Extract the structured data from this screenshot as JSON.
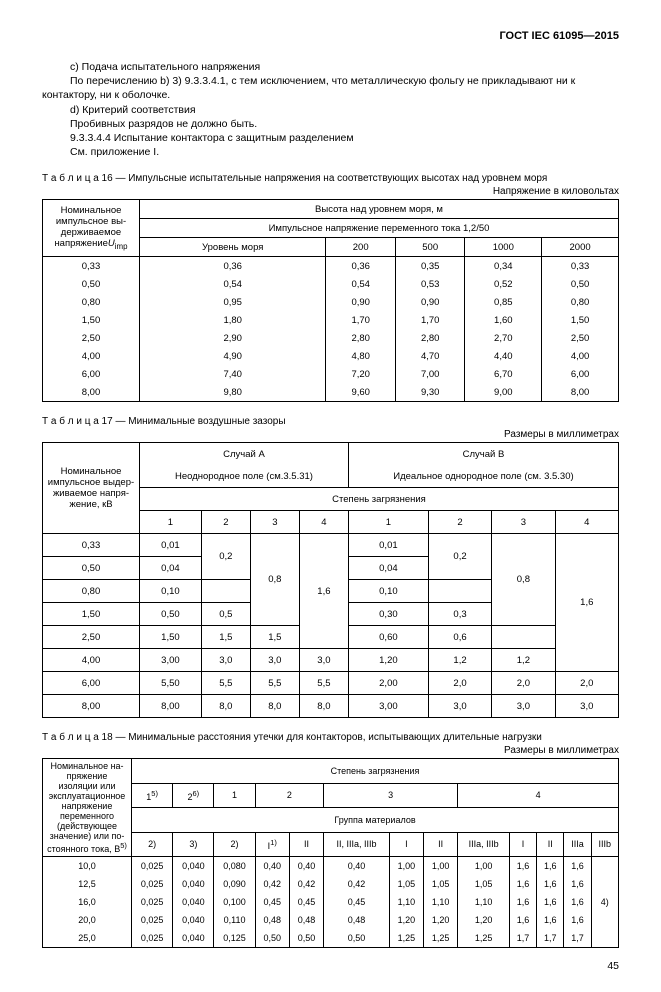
{
  "header": {
    "standard": "ГОСТ IEC 61095—2015"
  },
  "para": {
    "c": "c) Подача испытательного напряжения",
    "c2": "По перечислению b) 3) 9.3.3.4.1, с тем исключением, что металлическую фольгу не прикладывают ни к контактору, ни к оболочке.",
    "d": "d) Критерий соответствия",
    "d2": "Пробивных разрядов не должно быть.",
    "d3": "9.3.3.4.4 Испытание контактора с защитным разделением",
    "d4": "См. приложение I."
  },
  "t16": {
    "caption_label": "Т а б л и ц а  16",
    "caption_text": " — Импульсные испытательные напряжения на соответствующих высотах над уровнем моря",
    "unit": "Напряжение в киловольтах",
    "head_left": "Номинальное импульсное вы­держиваемое напряжение",
    "head_left_sym": "U",
    "head_left_sub": "imp",
    "head_top": "Высота над уровнем моря, м",
    "head_sub": "Импульсное напряжение переменного тока 1,2/50",
    "cols": [
      "Уровень моря",
      "200",
      "500",
      "1000",
      "2000"
    ],
    "rows": [
      {
        "u": "0,33",
        "v": [
          "0,36",
          "0,36",
          "0,35",
          "0,34",
          "0,33"
        ]
      },
      {
        "u": "0,50",
        "v": [
          "0,54",
          "0,54",
          "0,53",
          "0,52",
          "0,50"
        ]
      },
      {
        "u": "0,80",
        "v": [
          "0,95",
          "0,90",
          "0,90",
          "0,85",
          "0,80"
        ]
      },
      {
        "u": "1,50",
        "v": [
          "1,80",
          "1,70",
          "1,70",
          "1,60",
          "1,50"
        ]
      },
      {
        "u": "2,50",
        "v": [
          "2,90",
          "2,80",
          "2,80",
          "2,70",
          "2,50"
        ]
      },
      {
        "u": "4,00",
        "v": [
          "4,90",
          "4,80",
          "4,70",
          "4,40",
          "4,00"
        ]
      },
      {
        "u": "6,00",
        "v": [
          "7,40",
          "7,20",
          "7,00",
          "6,70",
          "6,00"
        ]
      },
      {
        "u": "8,00",
        "v": [
          "9,80",
          "9,60",
          "9,30",
          "9,00",
          "8,00"
        ]
      }
    ]
  },
  "t17": {
    "caption_label": "Т а б л и ц а  17",
    "caption_text": " — Минимальные воздушные зазоры",
    "unit": "Размеры в миллиметрах",
    "head_left": "Номинальное импульсное выдер­живаемое напря­жение, кВ",
    "caseA": "Случай А",
    "caseA_sub": "Неоднородное поле (см.3.5.31)",
    "caseB": "Случай В",
    "caseB_sub": "Идеальное однородное поле (см. 3.5.30)",
    "pollution": "Степень загрязнения",
    "cols": [
      "1",
      "2",
      "3",
      "4",
      "1",
      "2",
      "3",
      "4"
    ],
    "rows": [
      {
        "u": "0,33",
        "v": [
          "0,01",
          "0,2",
          "0,8",
          "1,6",
          "0,01",
          "0,2",
          "0,8",
          "1,6"
        ],
        "rs": [
          1,
          2,
          4,
          5,
          1,
          2,
          4,
          6
        ]
      },
      {
        "u": "0,50",
        "v": [
          "0,04",
          "",
          "",
          "",
          "0,04",
          "",
          "",
          ""
        ]
      },
      {
        "u": "0,80",
        "v": [
          "0,10",
          "",
          "",
          "",
          "0,10",
          "",
          "",
          ""
        ]
      },
      {
        "u": "1,50",
        "v": [
          "0,50",
          "0,5",
          "",
          "",
          "0,30",
          "0,3",
          "",
          ""
        ]
      },
      {
        "u": "2,50",
        "v": [
          "1,50",
          "1,5",
          "1,5",
          "",
          "0,60",
          "0,6",
          "",
          ""
        ]
      },
      {
        "u": "4,00",
        "v": [
          "3,00",
          "3,0",
          "3,0",
          "3,0",
          "1,20",
          "1,2",
          "1,2",
          ""
        ]
      },
      {
        "u": "6,00",
        "v": [
          "5,50",
          "5,5",
          "5,5",
          "5,5",
          "2,00",
          "2,0",
          "2,0",
          "2,0"
        ]
      },
      {
        "u": "8,00",
        "v": [
          "8,00",
          "8,0",
          "8,0",
          "8,0",
          "3,00",
          "3,0",
          "3,0",
          "3,0"
        ]
      }
    ]
  },
  "t18": {
    "caption_label": "Т а б л и ц а  18",
    "caption_text": " — Минимальные расстояния утечки для контакторов, испытывающих длительные нагрузки",
    "unit": "Размеры в миллиметрах",
    "head_left": "Номинальное на­пряжение изоляции или эксплуатаци­онное напряже­ние переменного (действующее значение) или по­стоянного тока, В",
    "head_left_sup": "5)",
    "pollution": "Степень загрязнения",
    "material": "Группа материалов",
    "top_cols": [
      "1",
      "2",
      "1",
      "2",
      "3",
      "4"
    ],
    "top_sup": [
      "5)",
      "6)",
      "",
      "",
      "",
      ""
    ],
    "mat_cols": [
      "2)",
      "3)",
      "2)",
      "I",
      "II",
      "II, IIIa, IIIb",
      "I",
      "II",
      "IIIa, IIIb",
      "I",
      "II",
      "IIIa",
      "IIIb"
    ],
    "mat_sup": [
      "",
      "",
      "",
      "1)",
      "",
      "",
      "",
      "",
      "",
      "",
      "",
      "",
      ""
    ],
    "rows": [
      {
        "u": "10,0",
        "v": [
          "0,025",
          "0,040",
          "0,080",
          "0,40",
          "0,40",
          "0,40",
          "1,00",
          "1,00",
          "1,00",
          "1,6",
          "1,6",
          "1,6"
        ]
      },
      {
        "u": "12,5",
        "v": [
          "0,025",
          "0,040",
          "0,090",
          "0,42",
          "0,42",
          "0,42",
          "1,05",
          "1,05",
          "1,05",
          "1,6",
          "1,6",
          "1,6"
        ]
      },
      {
        "u": "16,0",
        "v": [
          "0,025",
          "0,040",
          "0,100",
          "0,45",
          "0,45",
          "0,45",
          "1,10",
          "1,10",
          "1,10",
          "1,6",
          "1,6",
          "1,6"
        ]
      },
      {
        "u": "20,0",
        "v": [
          "0,025",
          "0,040",
          "0,110",
          "0,48",
          "0,48",
          "0,48",
          "1,20",
          "1,20",
          "1,20",
          "1,6",
          "1,6",
          "1,6"
        ]
      },
      {
        "u": "25,0",
        "v": [
          "0,025",
          "0,040",
          "0,125",
          "0,50",
          "0,50",
          "0,50",
          "1,25",
          "1,25",
          "1,25",
          "1,7",
          "1,7",
          "1,7"
        ]
      }
    ],
    "last_col": "4)"
  },
  "page_number": "45"
}
